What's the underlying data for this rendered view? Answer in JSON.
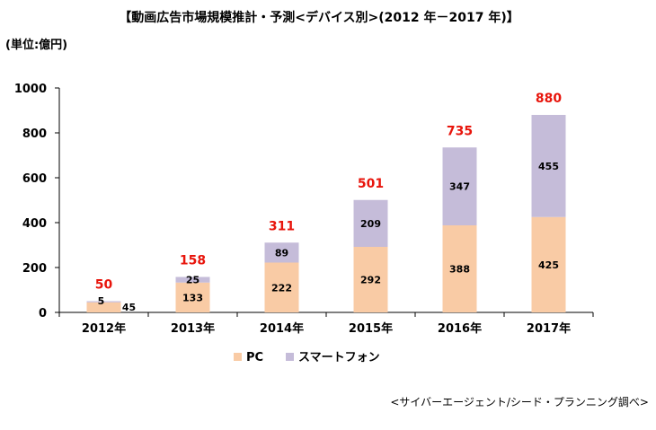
{
  "chart_data": {
    "type": "bar",
    "stacked": true,
    "title": "【動画広告市場規模推計・予測<デバイス別>(2012 年－2017 年)】",
    "unit_label": "(単位:億円)",
    "categories": [
      "2012年",
      "2013年",
      "2014年",
      "2015年",
      "2016年",
      "2017年"
    ],
    "series": [
      {
        "name": "PC",
        "values": [
          45,
          133,
          222,
          292,
          388,
          425
        ],
        "color": "#F9CBA5"
      },
      {
        "name": "スマートフォン",
        "values": [
          5,
          25,
          89,
          209,
          347,
          455
        ],
        "color": "#C5BCD9"
      }
    ],
    "totals": [
      50,
      158,
      311,
      501,
      735,
      880
    ],
    "total_color": "#E8150C",
    "ylim": [
      0,
      1000
    ],
    "yticks": [
      0,
      200,
      400,
      600,
      800,
      1000
    ],
    "grid": false,
    "legend_position": "bottom",
    "source": "<サイバーエージェント/シード・プランニング調べ>"
  }
}
